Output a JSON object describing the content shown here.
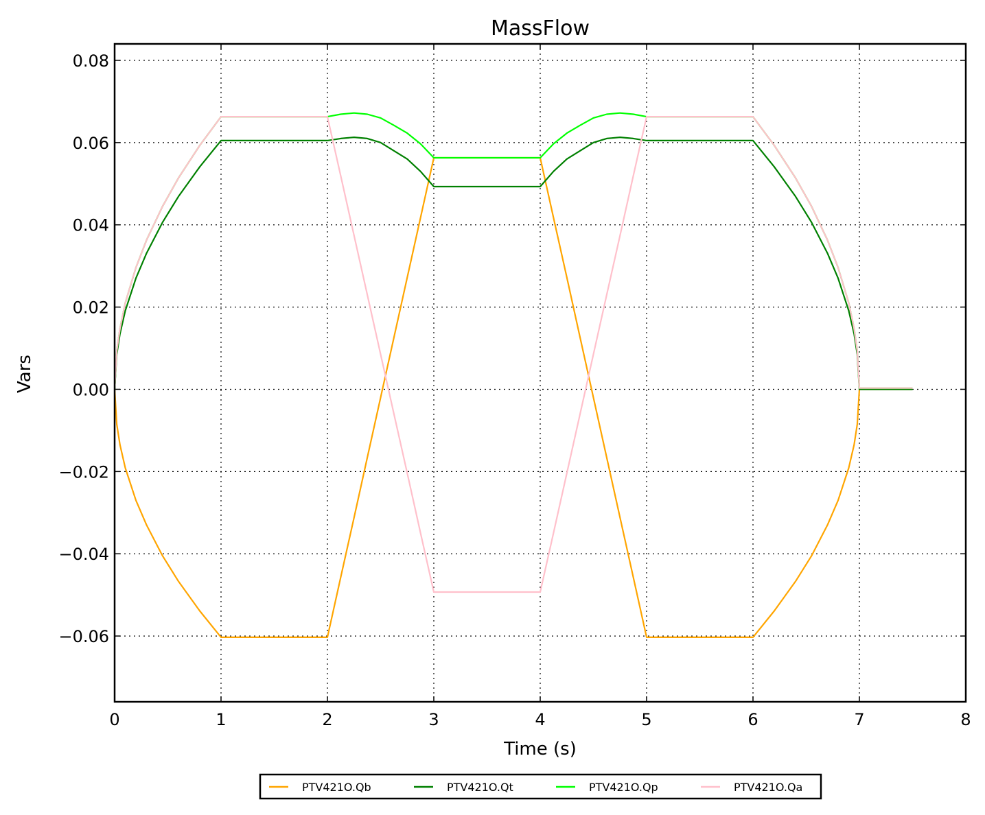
{
  "chart_data": {
    "type": "line",
    "title": "MassFlow",
    "xlabel": "Time (s)",
    "ylabel": "Vars",
    "xlim": [
      0,
      8
    ],
    "ylim": [
      -0.076,
      0.084
    ],
    "xticks": [
      0,
      1,
      2,
      3,
      4,
      5,
      6,
      7,
      8
    ],
    "xtick_labels": [
      "0",
      "1",
      "2",
      "3",
      "4",
      "5",
      "6",
      "7",
      "8"
    ],
    "yticks": [
      -0.06,
      -0.04,
      -0.02,
      0.0,
      0.02,
      0.04,
      0.06,
      0.08
    ],
    "ytick_labels": [
      "−0.06",
      "−0.04",
      "−0.02",
      "0.00",
      "0.02",
      "0.04",
      "0.06",
      "0.08"
    ],
    "grid": true,
    "legend_placement": "bottom-center-outside",
    "x": [
      0,
      0.02,
      0.05,
      0.1,
      0.2,
      0.3,
      0.45,
      0.6,
      0.8,
      1,
      2,
      2.125,
      2.25,
      2.375,
      2.5,
      2.625,
      2.75,
      2.875,
      3,
      4,
      4.125,
      4.25,
      4.375,
      4.5,
      4.625,
      4.75,
      4.875,
      5,
      6,
      6.2,
      6.4,
      6.55,
      6.7,
      6.8,
      6.9,
      6.95,
      6.98,
      7,
      7.5
    ],
    "series": [
      {
        "name": "PTV421O.Qb",
        "color": "#FFA500",
        "values": [
          0,
          -0.0085,
          -0.0135,
          -0.0191,
          -0.027,
          -0.033,
          -0.0405,
          -0.0467,
          -0.0539,
          -0.0603,
          -0.0603,
          -0.0457,
          -0.0312,
          -0.0166,
          -0.002,
          0.0126,
          0.0272,
          0.0417,
          0.0563,
          0.0563,
          0.0417,
          0.0272,
          0.0126,
          -0.002,
          -0.0166,
          -0.0312,
          -0.0457,
          -0.0603,
          -0.0603,
          -0.0539,
          -0.0467,
          -0.0405,
          -0.033,
          -0.027,
          -0.0191,
          -0.0135,
          -0.0085,
          0,
          0
        ]
      },
      {
        "name": "PTV421O.Qt",
        "color": "#008000",
        "values": [
          0,
          0.0085,
          0.0135,
          0.0191,
          0.027,
          0.0331,
          0.0406,
          0.0469,
          0.0541,
          0.0605,
          0.0605,
          0.061,
          0.0613,
          0.061,
          0.06,
          0.058,
          0.056,
          0.053,
          0.0493,
          0.0493,
          0.053,
          0.056,
          0.058,
          0.06,
          0.061,
          0.0613,
          0.061,
          0.0605,
          0.0605,
          0.0541,
          0.0469,
          0.0406,
          0.0331,
          0.027,
          0.0191,
          0.0135,
          0.0085,
          0,
          0
        ]
      },
      {
        "name": "PTV421O.Qp",
        "color": "#00FF00",
        "values": [
          0,
          0.0094,
          0.0148,
          0.021,
          0.0296,
          0.0363,
          0.0445,
          0.0514,
          0.0593,
          0.0663,
          0.0663,
          0.0669,
          0.0672,
          0.0669,
          0.066,
          0.0642,
          0.0623,
          0.0597,
          0.0563,
          0.0563,
          0.0597,
          0.0623,
          0.0642,
          0.066,
          0.0669,
          0.0672,
          0.0669,
          0.0663,
          0.0663,
          0.0593,
          0.0514,
          0.0445,
          0.0363,
          0.0296,
          0.021,
          0.0148,
          0.0094,
          0.0003,
          0.0003
        ]
      },
      {
        "name": "PTV421O.Qa",
        "color": "#FFC0CB",
        "values": [
          0,
          0.0094,
          0.0148,
          0.021,
          0.0296,
          0.0363,
          0.0445,
          0.0514,
          0.0593,
          0.0663,
          0.0663,
          0.0519,
          0.0374,
          0.023,
          0.0085,
          -0.006,
          -0.0204,
          -0.0349,
          -0.0493,
          -0.0493,
          -0.0349,
          -0.0204,
          -0.006,
          0.0085,
          0.023,
          0.0374,
          0.0519,
          0.0663,
          0.0663,
          0.0593,
          0.0514,
          0.0445,
          0.0363,
          0.0296,
          0.021,
          0.0148,
          0.0094,
          0.0003,
          0.0003
        ]
      }
    ]
  }
}
